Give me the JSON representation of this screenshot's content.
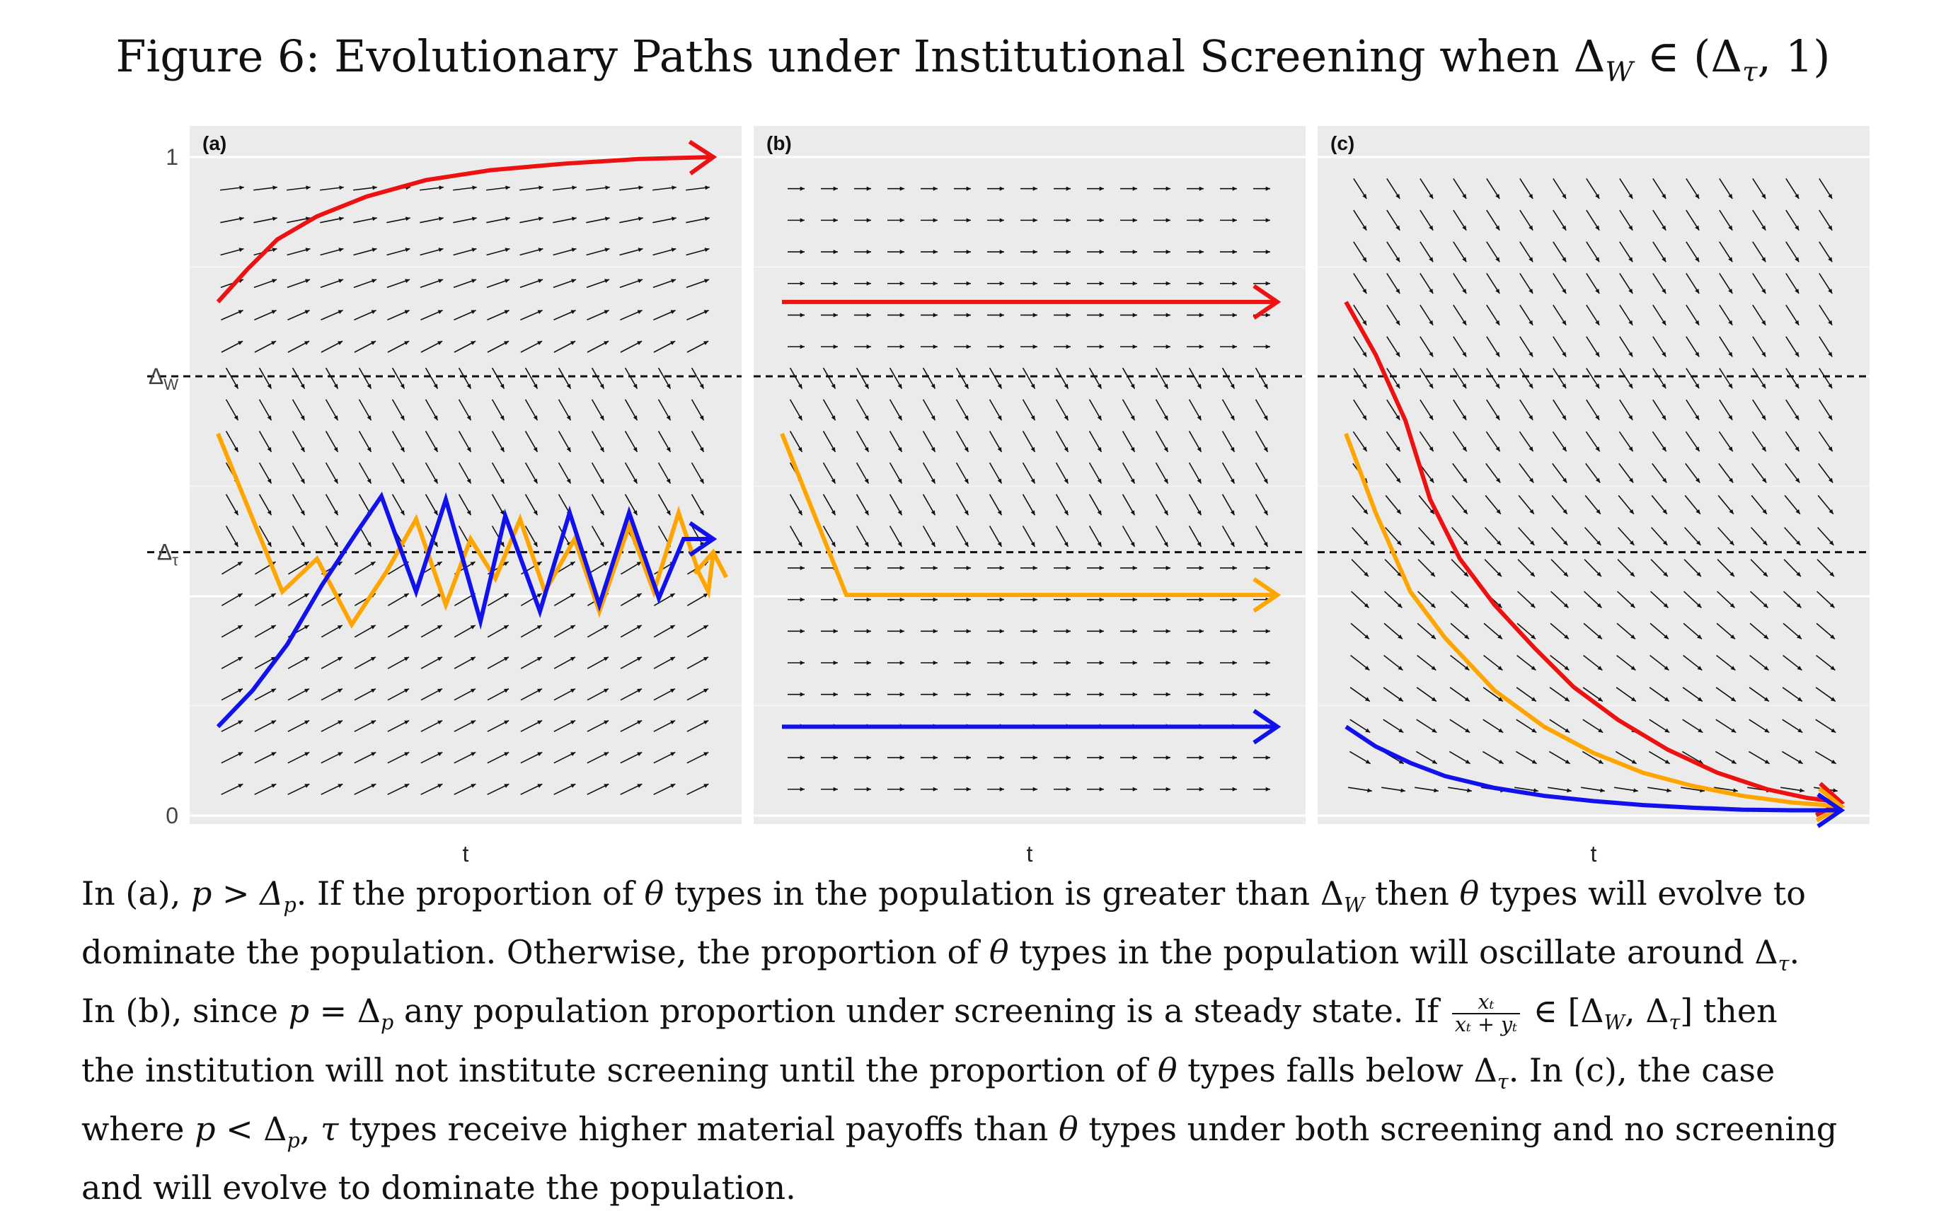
{
  "title": {
    "figure_label": "Figure 6:",
    "main": "Evolutionary Paths under Institutional Screening when Δ",
    "sub_w": "W",
    "tail": " ∈ (Δ",
    "sub_tau": "τ",
    "close": ", 1)"
  },
  "chart_data": [
    {
      "type": "line",
      "panel_label": "(a)",
      "xlabel": "t",
      "ylabel": "",
      "y_tick_labels": [
        "1",
        "Δ_W",
        "Δ_τ",
        "0"
      ],
      "y_tick_values": [
        1.0,
        0.667,
        0.4,
        0.0
      ],
      "xlim": [
        0,
        1
      ],
      "ylim": [
        0,
        1
      ],
      "thresholds": [
        {
          "name": "Δ_W",
          "value": 0.667,
          "style": "dashed"
        },
        {
          "name": "Δ_τ",
          "value": 0.4,
          "style": "dashed"
        }
      ],
      "vector_field": {
        "above_dw": "upward toward 1",
        "between": "downward toward Δ_τ",
        "below_dtau": "upward toward Δ_τ"
      },
      "series": [
        {
          "color": "#ee1111",
          "x": [
            0.0,
            0.06,
            0.12,
            0.2,
            0.3,
            0.42,
            0.55,
            0.7,
            0.85,
            1.0
          ],
          "y": [
            0.78,
            0.83,
            0.875,
            0.91,
            0.94,
            0.965,
            0.98,
            0.99,
            0.997,
            1.0
          ]
        },
        {
          "color": "#ffa500",
          "x": [
            0.0,
            0.13,
            0.2,
            0.27,
            0.34,
            0.4,
            0.46,
            0.51,
            0.56,
            0.61,
            0.66,
            0.72,
            0.77,
            0.83,
            0.88,
            0.93,
            0.97,
            0.99,
            1.0
          ],
          "y": [
            0.58,
            0.34,
            0.39,
            0.29,
            0.37,
            0.45,
            0.32,
            0.42,
            0.36,
            0.45,
            0.34,
            0.42,
            0.31,
            0.44,
            0.34,
            0.46,
            0.37,
            0.34,
            0.4
          ]
        },
        {
          "color": "#1111ee",
          "x": [
            0.0,
            0.07,
            0.14,
            0.21,
            0.28,
            0.33,
            0.4,
            0.46,
            0.53,
            0.58,
            0.65,
            0.71,
            0.77,
            0.83,
            0.89,
            0.94,
            1.0
          ],
          "y": [
            0.135,
            0.19,
            0.26,
            0.35,
            0.43,
            0.485,
            0.34,
            0.48,
            0.295,
            0.455,
            0.31,
            0.46,
            0.32,
            0.46,
            0.33,
            0.42,
            0.42
          ]
        }
      ]
    },
    {
      "type": "line",
      "panel_label": "(b)",
      "xlabel": "t",
      "ylabel": "",
      "xlim": [
        0,
        1
      ],
      "ylim": [
        0,
        1
      ],
      "thresholds": [
        {
          "name": "Δ_W",
          "value": 0.667,
          "style": "dashed"
        },
        {
          "name": "Δ_τ",
          "value": 0.4,
          "style": "dashed"
        }
      ],
      "vector_field": {
        "above_dw": "horizontal",
        "between": "downward toward Δ_τ",
        "below_dtau": "horizontal"
      },
      "series": [
        {
          "color": "#ee1111",
          "x": [
            0.0,
            1.0
          ],
          "y": [
            0.78,
            0.78
          ]
        },
        {
          "color": "#ffa500",
          "x": [
            0.0,
            0.13,
            1.0
          ],
          "y": [
            0.58,
            0.335,
            0.335
          ]
        },
        {
          "color": "#1111ee",
          "x": [
            0.0,
            1.0
          ],
          "y": [
            0.135,
            0.135
          ]
        }
      ]
    },
    {
      "type": "line",
      "panel_label": "(c)",
      "xlabel": "t",
      "ylabel": "",
      "xlim": [
        0,
        1
      ],
      "ylim": [
        0,
        1
      ],
      "thresholds": [
        {
          "name": "Δ_W",
          "value": 0.667,
          "style": "dashed"
        },
        {
          "name": "Δ_τ",
          "value": 0.4,
          "style": "dashed"
        }
      ],
      "vector_field": {
        "above_dw": "downward",
        "between": "downward",
        "below_dtau": "downward toward 0"
      },
      "series": [
        {
          "color": "#ee1111",
          "x": [
            0.0,
            0.06,
            0.12,
            0.17,
            0.23,
            0.3,
            0.38,
            0.46,
            0.55,
            0.65,
            0.75,
            0.85,
            0.93,
            1.0
          ],
          "y": [
            0.78,
            0.7,
            0.6,
            0.48,
            0.39,
            0.32,
            0.255,
            0.195,
            0.145,
            0.1,
            0.065,
            0.04,
            0.027,
            0.02
          ]
        },
        {
          "color": "#ffa500",
          "x": [
            0.0,
            0.06,
            0.13,
            0.2,
            0.3,
            0.4,
            0.5,
            0.6,
            0.7,
            0.8,
            0.9,
            1.0
          ],
          "y": [
            0.58,
            0.46,
            0.34,
            0.27,
            0.19,
            0.135,
            0.095,
            0.065,
            0.045,
            0.03,
            0.02,
            0.014
          ]
        },
        {
          "color": "#1111ee",
          "x": [
            0.0,
            0.06,
            0.13,
            0.2,
            0.3,
            0.4,
            0.5,
            0.6,
            0.7,
            0.8,
            0.9,
            1.0
          ],
          "y": [
            0.135,
            0.105,
            0.08,
            0.06,
            0.042,
            0.03,
            0.022,
            0.016,
            0.012,
            0.009,
            0.008,
            0.008
          ]
        }
      ]
    }
  ],
  "caption": {
    "l1_a": "In (a), ",
    "l1_b": "p > Δ",
    "l1_b_sub": "p",
    "l1_c": ". If the proportion of ",
    "l1_theta1": "θ",
    "l1_d": " types in the population is greater than Δ",
    "l1_d_sub": "W",
    "l1_e": " then ",
    "l1_theta2": "θ",
    "l1_f": " types will evolve to",
    "l2_a": "dominate the population. Otherwise, the proportion of ",
    "l2_theta": "θ",
    "l2_b": " types in the population will oscillate around Δ",
    "l2_b_sub": "τ",
    "l2_c": ".",
    "l3_a": "In (b), since ",
    "l3_p": "p",
    "l3_b": " = Δ",
    "l3_b_sub": "p",
    "l3_c": " any population proportion under screening is a steady state. If ",
    "l3_num": "xₜ",
    "l3_den": "xₜ + yₜ",
    "l3_d": " ∈ [Δ",
    "l3_d_sub1": "W",
    "l3_e": ", Δ",
    "l3_e_sub": "τ",
    "l3_f": "] then",
    "l4_a": "the institution will not institute screening until the proportion of ",
    "l4_theta": "θ",
    "l4_b": " types falls below Δ",
    "l4_b_sub": "τ",
    "l4_c": ". In (c), the case",
    "l5_a": "where ",
    "l5_p": "p",
    "l5_b": " < Δ",
    "l5_b_sub": "p",
    "l5_c": ", ",
    "l5_tau": "τ",
    "l5_d": " types receive higher material payoffs than ",
    "l5_theta": "θ",
    "l5_e": " types under both screening and no screening",
    "l6": "and will evolve to dominate the population."
  }
}
